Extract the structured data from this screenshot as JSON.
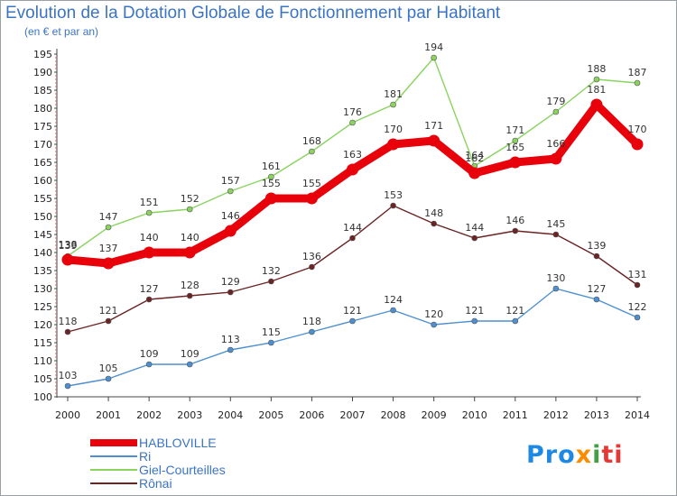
{
  "chart_data": {
    "type": "line",
    "title": "Evolution de la Dotation Globale de Fonctionnement par Habitant",
    "subtitle": "(en € et par an)",
    "xlabel": "",
    "ylabel": "",
    "x": [
      "2000",
      "2001",
      "2002",
      "2003",
      "2004",
      "2005",
      "2006",
      "2007",
      "2008",
      "2009",
      "2010",
      "2011",
      "2012",
      "2013",
      "2014"
    ],
    "ylim": [
      100,
      195
    ],
    "yticks": [
      100,
      105,
      110,
      115,
      120,
      125,
      130,
      135,
      140,
      145,
      150,
      155,
      160,
      165,
      170,
      175,
      180,
      185,
      190,
      195
    ],
    "grid": false,
    "legend_position": "bottom-left",
    "series": [
      {
        "name": "HABLOVILLE",
        "color": "#e8000b",
        "values": [
          138,
          137,
          140,
          140,
          146,
          155,
          155,
          163,
          170,
          171,
          162,
          165,
          166,
          181,
          170
        ],
        "labels": [
          "138",
          "137",
          "140",
          "140",
          "146",
          "155",
          "155",
          "163",
          "170",
          "171",
          "162",
          "165",
          "166",
          "181",
          "170"
        ]
      },
      {
        "name": "Ri",
        "color": "#4d8fd1",
        "values": [
          103,
          105,
          109,
          109,
          113,
          115,
          118,
          121,
          124,
          120,
          121,
          121,
          130,
          127,
          122
        ],
        "labels": [
          "103",
          "105",
          "109",
          "109",
          "113",
          "115",
          "118",
          "121",
          "124",
          "120",
          "121",
          "121",
          "130",
          "127",
          "122"
        ]
      },
      {
        "name": "Giel-Courteilles",
        "color": "#8ad35f",
        "values": [
          139,
          147,
          151,
          152,
          157,
          161,
          168,
          176,
          181,
          194,
          164,
          171,
          179,
          188,
          187
        ],
        "labels": [
          "139",
          "147",
          "151",
          "152",
          "157",
          "161",
          "168",
          "176",
          "181",
          "194",
          "164",
          "171",
          "179",
          "188",
          "187"
        ]
      },
      {
        "name": "Rônai",
        "color": "#6b2323",
        "values": [
          118,
          121,
          127,
          128,
          129,
          132,
          136,
          144,
          153,
          148,
          144,
          146,
          145,
          139,
          131
        ],
        "labels": [
          "118",
          "121",
          "127",
          "128",
          "129",
          "132",
          "136",
          "144",
          "153",
          "148",
          "144",
          "146",
          "145",
          "139",
          "131"
        ]
      }
    ]
  },
  "legend": {
    "items": [
      "HABLOVILLE",
      "Ri",
      "Giel-Courteilles",
      "Rônai"
    ]
  },
  "logo": {
    "parts": [
      "Pro",
      "x",
      "i",
      "ti"
    ]
  }
}
